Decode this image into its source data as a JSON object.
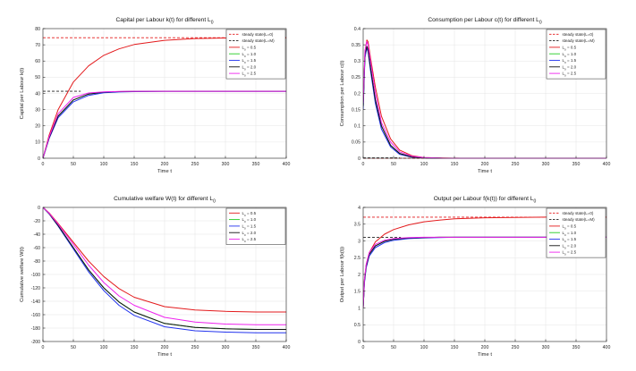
{
  "chart_data": [
    {
      "type": "line",
      "title": "Capital per Labour k(t) for different L",
      "title_sub": "0",
      "xlabel": "Time t",
      "ylabel": "Capital per Labour k(t)",
      "xlim": [
        0,
        400
      ],
      "ylim": [
        0,
        80
      ],
      "xticks": [
        0,
        50,
        100,
        150,
        200,
        250,
        300,
        350,
        400
      ],
      "yticks": [
        0,
        10,
        20,
        30,
        40,
        50,
        60,
        70,
        80
      ],
      "grid": true,
      "legend_position": "top-right",
      "series": [
        {
          "name": "steady state(L=0)",
          "color": "#e31a1c",
          "dash": true,
          "x": [
            0,
            400
          ],
          "values": [
            74.4,
            74.4
          ]
        },
        {
          "name": "steady state(L=M)",
          "color": "#222222",
          "dash": true,
          "x": [
            0,
            62
          ],
          "values": [
            41.3,
            41.3
          ]
        },
        {
          "name": "L0 = 0.5",
          "color": "#e31a1c",
          "x": [
            0,
            10,
            25,
            50,
            75,
            100,
            125,
            150,
            200,
            250,
            300,
            350,
            400
          ],
          "values": [
            0,
            14,
            30,
            47,
            57,
            63.5,
            67.5,
            70.2,
            72.8,
            73.9,
            74.2,
            74.3,
            74.4
          ]
        },
        {
          "name": "L0 = 1.0",
          "color": "#22cc22",
          "x": [
            0,
            10,
            25,
            50,
            75,
            100,
            125,
            150,
            200,
            250,
            300,
            350,
            400
          ],
          "values": [
            0,
            12.5,
            26,
            36,
            39.6,
            40.8,
            41.1,
            41.25,
            41.3,
            41.3,
            41.3,
            41.3,
            41.3
          ]
        },
        {
          "name": "L0 = 1.5",
          "color": "#2233ee",
          "x": [
            0,
            10,
            25,
            50,
            75,
            100,
            125,
            150,
            200,
            250,
            300,
            350,
            400
          ],
          "values": [
            0,
            12,
            25,
            34.8,
            38.8,
            40.4,
            40.9,
            41.1,
            41.3,
            41.3,
            41.3,
            41.3,
            41.3
          ]
        },
        {
          "name": "L0 = 2.0",
          "color": "#111111",
          "x": [
            0,
            10,
            25,
            50,
            75,
            100,
            125,
            150,
            200,
            250,
            300,
            350,
            400
          ],
          "values": [
            0,
            12.5,
            26,
            36,
            39.6,
            40.8,
            41.1,
            41.25,
            41.3,
            41.3,
            41.3,
            41.3,
            41.3
          ]
        },
        {
          "name": "L0 = 2.5",
          "color": "#ee22ee",
          "x": [
            0,
            10,
            25,
            50,
            75,
            100,
            125,
            150,
            200,
            250,
            300,
            350,
            400
          ],
          "values": [
            0,
            13,
            27.5,
            37.5,
            40.3,
            41.0,
            41.2,
            41.3,
            41.3,
            41.3,
            41.3,
            41.3,
            41.3
          ]
        }
      ]
    },
    {
      "type": "line",
      "title": "Consumption per Labour c(t) for different L",
      "title_sub": "0",
      "xlabel": "Time t",
      "ylabel": "Consumption per Labour c(t)",
      "xlim": [
        0,
        400
      ],
      "ylim": [
        0,
        0.4
      ],
      "xticks": [
        0,
        50,
        100,
        150,
        200,
        250,
        300,
        350,
        400
      ],
      "yticks": [
        0,
        0.05,
        0.1,
        0.15,
        0.2,
        0.25,
        0.3,
        0.35,
        0.4
      ],
      "grid": true,
      "legend_position": "top-right",
      "series": [
        {
          "name": "steady state(L=0)",
          "color": "#e31a1c",
          "dash": true,
          "x": [
            0,
            400
          ],
          "values": [
            0,
            0
          ]
        },
        {
          "name": "steady state(L=M)",
          "color": "#222222",
          "dash": true,
          "x": [
            0,
            60
          ],
          "values": [
            0.001,
            0.001
          ]
        },
        {
          "name": "L0 = 0.5",
          "color": "#e31a1c",
          "x": [
            0,
            3,
            6,
            8,
            12,
            20,
            30,
            45,
            60,
            80,
            100,
            130,
            160,
            200,
            400
          ],
          "values": [
            0.17,
            0.33,
            0.365,
            0.36,
            0.31,
            0.22,
            0.13,
            0.06,
            0.025,
            0.008,
            0.002,
            0.0005,
            0,
            0,
            0
          ]
        },
        {
          "name": "L0 = 1.0",
          "color": "#22cc22",
          "x": [
            0,
            3,
            6,
            8,
            12,
            20,
            30,
            45,
            60,
            80,
            100,
            130,
            160,
            200,
            400
          ],
          "values": [
            0.16,
            0.32,
            0.345,
            0.335,
            0.28,
            0.18,
            0.1,
            0.04,
            0.015,
            0.004,
            0.001,
            0,
            0,
            0,
            0
          ]
        },
        {
          "name": "L0 = 1.5",
          "color": "#2233ee",
          "x": [
            0,
            3,
            6,
            8,
            12,
            20,
            30,
            45,
            60,
            80,
            100,
            130,
            160,
            200,
            400
          ],
          "values": [
            0.15,
            0.31,
            0.34,
            0.33,
            0.27,
            0.17,
            0.09,
            0.035,
            0.012,
            0.003,
            0.001,
            0,
            0,
            0,
            0
          ]
        },
        {
          "name": "L0 = 2.0",
          "color": "#111111",
          "x": [
            0,
            3,
            6,
            8,
            12,
            20,
            30,
            45,
            60,
            80,
            100,
            130,
            160,
            200,
            400
          ],
          "values": [
            0.16,
            0.32,
            0.345,
            0.335,
            0.28,
            0.18,
            0.1,
            0.04,
            0.015,
            0.004,
            0.001,
            0,
            0,
            0,
            0
          ]
        },
        {
          "name": "L0 = 2.5",
          "color": "#ee22ee",
          "x": [
            0,
            3,
            6,
            8,
            12,
            20,
            30,
            45,
            60,
            80,
            100,
            130,
            160,
            200,
            400
          ],
          "values": [
            0.17,
            0.33,
            0.36,
            0.35,
            0.3,
            0.2,
            0.11,
            0.05,
            0.02,
            0.006,
            0.002,
            0.0004,
            0,
            0,
            0
          ]
        }
      ]
    },
    {
      "type": "line",
      "title": "Cumulative welfare W(t) for different L",
      "title_sub": "0",
      "xlabel": "Time t",
      "ylabel": "Cumulative welfare W(t)",
      "xlim": [
        0,
        400
      ],
      "ylim": [
        -200,
        0
      ],
      "xticks": [
        0,
        50,
        100,
        150,
        200,
        250,
        300,
        350,
        400
      ],
      "yticks": [
        -200,
        -180,
        -160,
        -140,
        -120,
        -100,
        -80,
        -60,
        -40,
        -20,
        0
      ],
      "grid": true,
      "legend_position": "top-right",
      "series": [
        {
          "name": "L0 = 0.5",
          "color": "#e31a1c",
          "x": [
            0,
            10,
            25,
            50,
            75,
            100,
            125,
            150,
            200,
            250,
            300,
            350,
            400
          ],
          "values": [
            0,
            -8,
            -24,
            -52,
            -80,
            -103,
            -121,
            -134,
            -148,
            -153,
            -155,
            -156,
            -156
          ]
        },
        {
          "name": "L0 = 1.0",
          "color": "#22cc22",
          "x": [
            0,
            10,
            25,
            50,
            75,
            100,
            125,
            150,
            200,
            250,
            300,
            350,
            400
          ],
          "values": [
            0,
            -9,
            -27,
            -60,
            -93,
            -120,
            -141,
            -156,
            -173,
            -179,
            -181,
            -182,
            -182
          ]
        },
        {
          "name": "L0 = 1.5",
          "color": "#2233ee",
          "x": [
            0,
            10,
            25,
            50,
            75,
            100,
            125,
            150,
            200,
            250,
            300,
            350,
            400
          ],
          "values": [
            0,
            -9.5,
            -28,
            -62,
            -96,
            -124,
            -146,
            -161,
            -178,
            -184,
            -186,
            -187,
            -187
          ]
        },
        {
          "name": "L0 = 2.0",
          "color": "#111111",
          "x": [
            0,
            10,
            25,
            50,
            75,
            100,
            125,
            150,
            200,
            250,
            300,
            350,
            400
          ],
          "values": [
            0,
            -9,
            -27,
            -60,
            -93,
            -120,
            -141,
            -156,
            -173,
            -179,
            -181,
            -182,
            -182
          ]
        },
        {
          "name": "L0 = 2.5",
          "color": "#ee22ee",
          "x": [
            0,
            10,
            25,
            50,
            75,
            100,
            125,
            150,
            200,
            250,
            300,
            350,
            400
          ],
          "values": [
            0,
            -8.5,
            -25,
            -55,
            -86,
            -112,
            -132,
            -146,
            -164,
            -171,
            -174,
            -175,
            -175
          ]
        }
      ]
    },
    {
      "type": "line",
      "title": "Output per Labour f(k(t)) for different L",
      "title_sub": "0",
      "xlabel": "Time t",
      "ylabel": "Output per Labour f(k(t))",
      "xlim": [
        0,
        400
      ],
      "ylim": [
        0,
        4
      ],
      "xticks": [
        0,
        50,
        100,
        150,
        200,
        250,
        300,
        350,
        400
      ],
      "yticks": [
        0,
        0.5,
        1,
        1.5,
        2,
        2.5,
        3,
        3.5,
        4
      ],
      "grid": true,
      "legend_position": "top-right",
      "series": [
        {
          "name": "steady state(L=0)",
          "color": "#e31a1c",
          "dash": true,
          "x": [
            0,
            400
          ],
          "values": [
            3.71,
            3.71
          ]
        },
        {
          "name": "steady state(L=M)",
          "color": "#222222",
          "dash": true,
          "x": [
            0,
            62
          ],
          "values": [
            3.11,
            3.11
          ]
        },
        {
          "name": "L0 = 0.5",
          "color": "#e31a1c",
          "x": [
            0,
            2,
            5,
            10,
            20,
            35,
            50,
            75,
            100,
            125,
            150,
            200,
            250,
            300,
            400
          ],
          "values": [
            1.0,
            1.85,
            2.3,
            2.65,
            2.97,
            3.2,
            3.34,
            3.48,
            3.57,
            3.62,
            3.66,
            3.69,
            3.7,
            3.71,
            3.71
          ]
        },
        {
          "name": "L0 = 1.0",
          "color": "#22cc22",
          "x": [
            0,
            2,
            5,
            10,
            20,
            35,
            50,
            75,
            100,
            125,
            150,
            200,
            250,
            300,
            400
          ],
          "values": [
            1.0,
            1.8,
            2.25,
            2.6,
            2.85,
            2.99,
            3.05,
            3.09,
            3.1,
            3.11,
            3.11,
            3.11,
            3.11,
            3.11,
            3.11
          ]
        },
        {
          "name": "L0 = 1.5",
          "color": "#2233ee",
          "x": [
            0,
            2,
            5,
            10,
            20,
            35,
            50,
            75,
            100,
            125,
            150,
            200,
            250,
            300,
            400
          ],
          "values": [
            1.0,
            1.75,
            2.2,
            2.55,
            2.8,
            2.95,
            3.02,
            3.07,
            3.09,
            3.1,
            3.11,
            3.11,
            3.11,
            3.11,
            3.11
          ]
        },
        {
          "name": "L0 = 2.0",
          "color": "#111111",
          "x": [
            0,
            2,
            5,
            10,
            20,
            35,
            50,
            75,
            100,
            125,
            150,
            200,
            250,
            300,
            400
          ],
          "values": [
            1.0,
            1.8,
            2.25,
            2.6,
            2.85,
            2.99,
            3.05,
            3.09,
            3.1,
            3.11,
            3.11,
            3.11,
            3.11,
            3.11,
            3.11
          ]
        },
        {
          "name": "L0 = 2.5",
          "color": "#ee22ee",
          "x": [
            0,
            2,
            5,
            10,
            20,
            35,
            50,
            75,
            100,
            125,
            150,
            200,
            250,
            300,
            400
          ],
          "values": [
            1.0,
            1.85,
            2.3,
            2.65,
            2.9,
            3.02,
            3.07,
            3.1,
            3.11,
            3.11,
            3.11,
            3.11,
            3.11,
            3.11,
            3.11
          ]
        }
      ]
    }
  ]
}
